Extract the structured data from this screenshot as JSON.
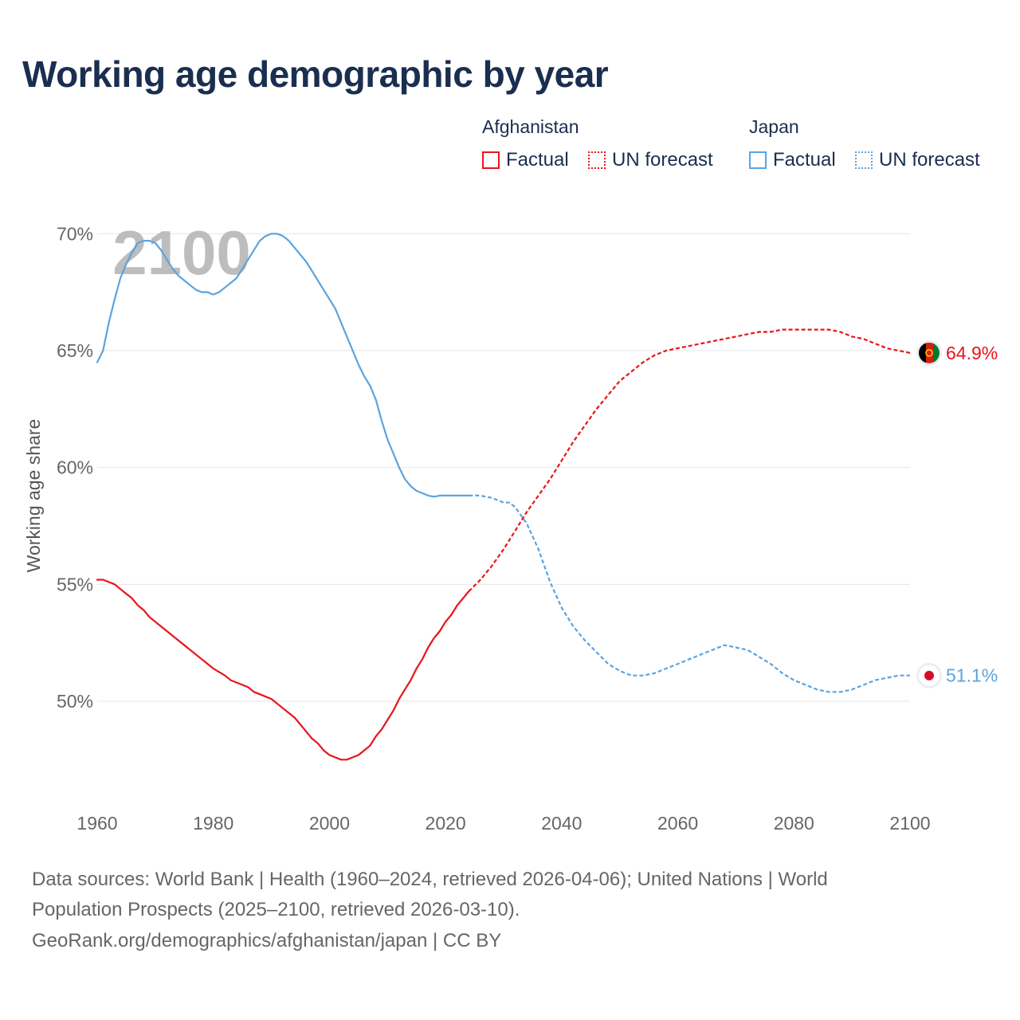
{
  "title": "Working age demographic by year",
  "legend": {
    "groups": [
      {
        "country": "Afghanistan",
        "factual_label": "Factual",
        "forecast_label": "UN forecast",
        "color": "#e8141b"
      },
      {
        "country": "Japan",
        "factual_label": "Factual",
        "forecast_label": "UN forecast",
        "color": "#5aa4e0"
      }
    ]
  },
  "footer": {
    "line1": "Data sources: World Bank | Health (1960–2024, retrieved 2026-04-06); United Nations | World",
    "line2": "Population Prospects (2025–2100, retrieved 2026-03-10).",
    "line3": "GeoRank.org/demographics/afghanistan/japan | CC BY"
  },
  "chart_data": {
    "type": "line",
    "title": "Working age demographic by year",
    "xlabel": "",
    "ylabel": "Working age share",
    "year_watermark": "2100",
    "xlim": [
      1960,
      2100
    ],
    "ylim": [
      45.5,
      71
    ],
    "xticks": [
      1960,
      1980,
      2000,
      2020,
      2040,
      2060,
      2080,
      2100
    ],
    "yticks": [
      50,
      55,
      60,
      65,
      70
    ],
    "ytick_labels": [
      "50%",
      "55%",
      "60%",
      "65%",
      "70%"
    ],
    "grid": true,
    "series": [
      {
        "name": "Afghanistan",
        "color": "#e8141b",
        "end_label": "64.9%",
        "factual": {
          "x": [
            1960,
            1961,
            1962,
            1963,
            1964,
            1965,
            1966,
            1967,
            1968,
            1969,
            1970,
            1972,
            1975,
            1978,
            1980,
            1982,
            1983,
            1984,
            1986,
            1987,
            1988,
            1990,
            1992,
            1994,
            1996,
            1997,
            1998,
            1999,
            2000,
            2001,
            2002,
            2003,
            2004,
            2005,
            2006,
            2007,
            2008,
            2009,
            2010,
            2011,
            2012,
            2013,
            2014,
            2015,
            2016,
            2017,
            2018,
            2019,
            2020,
            2021,
            2022,
            2023,
            2024
          ],
          "y": [
            55.2,
            55.2,
            55.1,
            55.0,
            54.8,
            54.6,
            54.4,
            54.1,
            53.9,
            53.6,
            53.4,
            53.0,
            52.4,
            51.8,
            51.4,
            51.1,
            50.9,
            50.8,
            50.6,
            50.4,
            50.3,
            50.1,
            49.7,
            49.3,
            48.7,
            48.4,
            48.2,
            47.9,
            47.7,
            47.6,
            47.5,
            47.5,
            47.6,
            47.7,
            47.9,
            48.1,
            48.5,
            48.8,
            49.2,
            49.6,
            50.1,
            50.5,
            50.9,
            51.4,
            51.8,
            52.3,
            52.7,
            53.0,
            53.4,
            53.7,
            54.1,
            54.4,
            54.7
          ]
        },
        "forecast": {
          "x": [
            2024,
            2026,
            2028,
            2030,
            2032,
            2034,
            2036,
            2038,
            2040,
            2042,
            2044,
            2046,
            2048,
            2050,
            2052,
            2054,
            2056,
            2058,
            2060,
            2062,
            2064,
            2066,
            2068,
            2070,
            2072,
            2074,
            2076,
            2078,
            2080,
            2082,
            2084,
            2086,
            2088,
            2090,
            2092,
            2094,
            2096,
            2098,
            2100
          ],
          "y": [
            54.7,
            55.2,
            55.8,
            56.5,
            57.3,
            58.1,
            58.8,
            59.5,
            60.3,
            61.1,
            61.8,
            62.5,
            63.1,
            63.7,
            64.1,
            64.5,
            64.8,
            65.0,
            65.1,
            65.2,
            65.3,
            65.4,
            65.5,
            65.6,
            65.7,
            65.8,
            65.8,
            65.9,
            65.9,
            65.9,
            65.9,
            65.9,
            65.8,
            65.6,
            65.5,
            65.3,
            65.1,
            65.0,
            64.9
          ]
        }
      },
      {
        "name": "Japan",
        "color": "#5aa4e0",
        "end_label": "51.1%",
        "factual": {
          "x": [
            1960,
            1961,
            1962,
            1963,
            1964,
            1965,
            1966,
            1967,
            1968,
            1969,
            1970,
            1971,
            1972,
            1973,
            1974,
            1975,
            1976,
            1977,
            1978,
            1979,
            1980,
            1981,
            1982,
            1983,
            1984,
            1985,
            1986,
            1987,
            1988,
            1989,
            1990,
            1991,
            1992,
            1993,
            1994,
            1995,
            1996,
            1997,
            1998,
            1999,
            2000,
            2001,
            2002,
            2003,
            2004,
            2005,
            2006,
            2007,
            2008,
            2009,
            2010,
            2011,
            2012,
            2013,
            2014,
            2015,
            2016,
            2017,
            2018,
            2019,
            2020,
            2021,
            2022,
            2023,
            2024
          ],
          "y": [
            64.5,
            65.0,
            66.2,
            67.2,
            68.1,
            68.7,
            69.2,
            69.6,
            69.7,
            69.7,
            69.6,
            69.3,
            68.9,
            68.5,
            68.2,
            68.0,
            67.8,
            67.6,
            67.5,
            67.5,
            67.4,
            67.5,
            67.7,
            67.9,
            68.1,
            68.5,
            68.9,
            69.3,
            69.7,
            69.9,
            70.0,
            70.0,
            69.9,
            69.7,
            69.4,
            69.1,
            68.8,
            68.4,
            68.0,
            67.6,
            67.2,
            66.8,
            66.2,
            65.6,
            65.0,
            64.4,
            63.9,
            63.5,
            62.9,
            62.0,
            61.2,
            60.6,
            60.0,
            59.5,
            59.2,
            59.0,
            58.9,
            58.8,
            58.75,
            58.8,
            58.8,
            58.8,
            58.8,
            58.8,
            58.8
          ]
        },
        "forecast": {
          "x": [
            2024,
            2026,
            2028,
            2030,
            2031,
            2032,
            2034,
            2036,
            2038,
            2040,
            2042,
            2044,
            2046,
            2048,
            2050,
            2052,
            2054,
            2056,
            2058,
            2060,
            2062,
            2064,
            2066,
            2068,
            2070,
            2072,
            2074,
            2076,
            2078,
            2080,
            2082,
            2084,
            2086,
            2088,
            2090,
            2092,
            2094,
            2096,
            2098,
            2100
          ],
          "y": [
            58.8,
            58.8,
            58.7,
            58.5,
            58.5,
            58.3,
            57.6,
            56.5,
            55.1,
            54.0,
            53.2,
            52.6,
            52.1,
            51.6,
            51.3,
            51.1,
            51.1,
            51.2,
            51.4,
            51.6,
            51.8,
            52.0,
            52.2,
            52.4,
            52.3,
            52.2,
            51.9,
            51.6,
            51.2,
            50.9,
            50.7,
            50.5,
            50.4,
            50.4,
            50.5,
            50.7,
            50.9,
            51.0,
            51.1,
            51.1
          ]
        }
      }
    ]
  }
}
